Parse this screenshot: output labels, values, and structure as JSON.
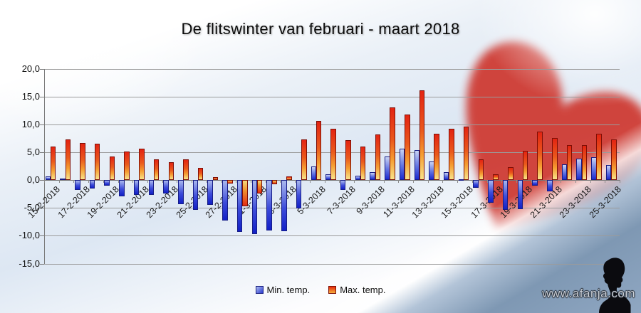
{
  "header": {
    "title": "De flitswinter van februari - maart 2018"
  },
  "legend": {
    "items": [
      {
        "label": "Min. temp.",
        "color": "#2334d0"
      },
      {
        "label": "Max. temp.",
        "color": "#e3270f"
      }
    ]
  },
  "watermark": {
    "text": "www.afanja.com"
  },
  "background": {
    "heart_color": "#ce3830",
    "band_color": "#6c8aa6"
  },
  "chart_data": {
    "type": "bar",
    "title": "De flitswinter van februari - maart 2018",
    "x": [
      "15-2-2018",
      "16-2-2018",
      "17-2-2018",
      "18-2-2018",
      "19-2-2018",
      "20-2-2018",
      "21-2-2018",
      "22-2-2018",
      "23-2-2018",
      "24-2-2018",
      "25-2-2018",
      "26-2-2018",
      "27-2-2018",
      "28-2-2018",
      "1-3-2018",
      "2-3-2018",
      "3-3-2018",
      "4-3-2018",
      "5-3-2018",
      "6-3-2018",
      "7-3-2018",
      "8-3-2018",
      "9-3-2018",
      "10-3-2018",
      "11-3-2018",
      "12-3-2018",
      "13-3-2018",
      "14-3-2018",
      "15-3-2018",
      "16-3-2018",
      "17-3-2018",
      "18-3-2018",
      "19-3-2018",
      "20-3-2018",
      "21-3-2018",
      "22-3-2018",
      "23-3-2018",
      "24-3-2018",
      "25-3-2018"
    ],
    "series": [
      {
        "name": "Min. temp.",
        "color": "#2334d0",
        "values": [
          0.7,
          0.3,
          -1.8,
          -1.5,
          -1.0,
          -2.9,
          -2.7,
          -2.7,
          -2.4,
          -4.3,
          -5.4,
          -4.5,
          -7.2,
          -9.3,
          -9.7,
          -9.1,
          -9.2,
          -5.1,
          2.5,
          1.1,
          -1.8,
          0.8,
          1.5,
          4.3,
          5.7,
          5.4,
          3.4,
          1.4,
          0.2,
          -1.4,
          -4.0,
          -5.3,
          -5.2,
          -1.0,
          -2.0,
          2.9,
          3.9,
          4.1,
          2.7
        ]
      },
      {
        "name": "Max. temp.",
        "color": "#e3270f",
        "values": [
          6.1,
          7.3,
          6.7,
          6.5,
          4.3,
          5.2,
          5.7,
          3.7,
          3.2,
          3.8,
          2.2,
          0.5,
          -0.6,
          -4.7,
          -2.4,
          -0.7,
          0.7,
          7.3,
          10.7,
          9.3,
          7.2,
          6.0,
          8.2,
          13.1,
          11.8,
          16.2,
          8.3,
          9.3,
          9.6,
          3.7,
          1.1,
          2.3,
          5.3,
          8.8,
          7.6,
          6.3,
          6.3,
          8.3,
          7.3
        ]
      }
    ],
    "x_tick_labels": [
      "15-2-2018",
      "17-2-2018",
      "19-2-2018",
      "21-2-2018",
      "23-2-2018",
      "25-2-2018",
      "27-2-2018",
      "1-3-2018",
      "3-3-2018",
      "5-3-2018",
      "7-3-2018",
      "9-3-2018",
      "11-3-2018",
      "13-3-2018",
      "15-3-2018",
      "17-3-2018",
      "19-3-2018",
      "21-3-2018",
      "23-3-2018",
      "25-3-2018"
    ],
    "y_ticks": [
      20,
      15,
      10,
      5,
      0,
      -5,
      -10,
      -15
    ],
    "y_tick_labels": [
      "20,0",
      "15,0",
      "10,0",
      "5,0",
      "0,0",
      "-5,0",
      "-10,0",
      "-15,0"
    ],
    "ylim": [
      -15,
      20
    ],
    "grid": true,
    "legend_position": "bottom"
  }
}
